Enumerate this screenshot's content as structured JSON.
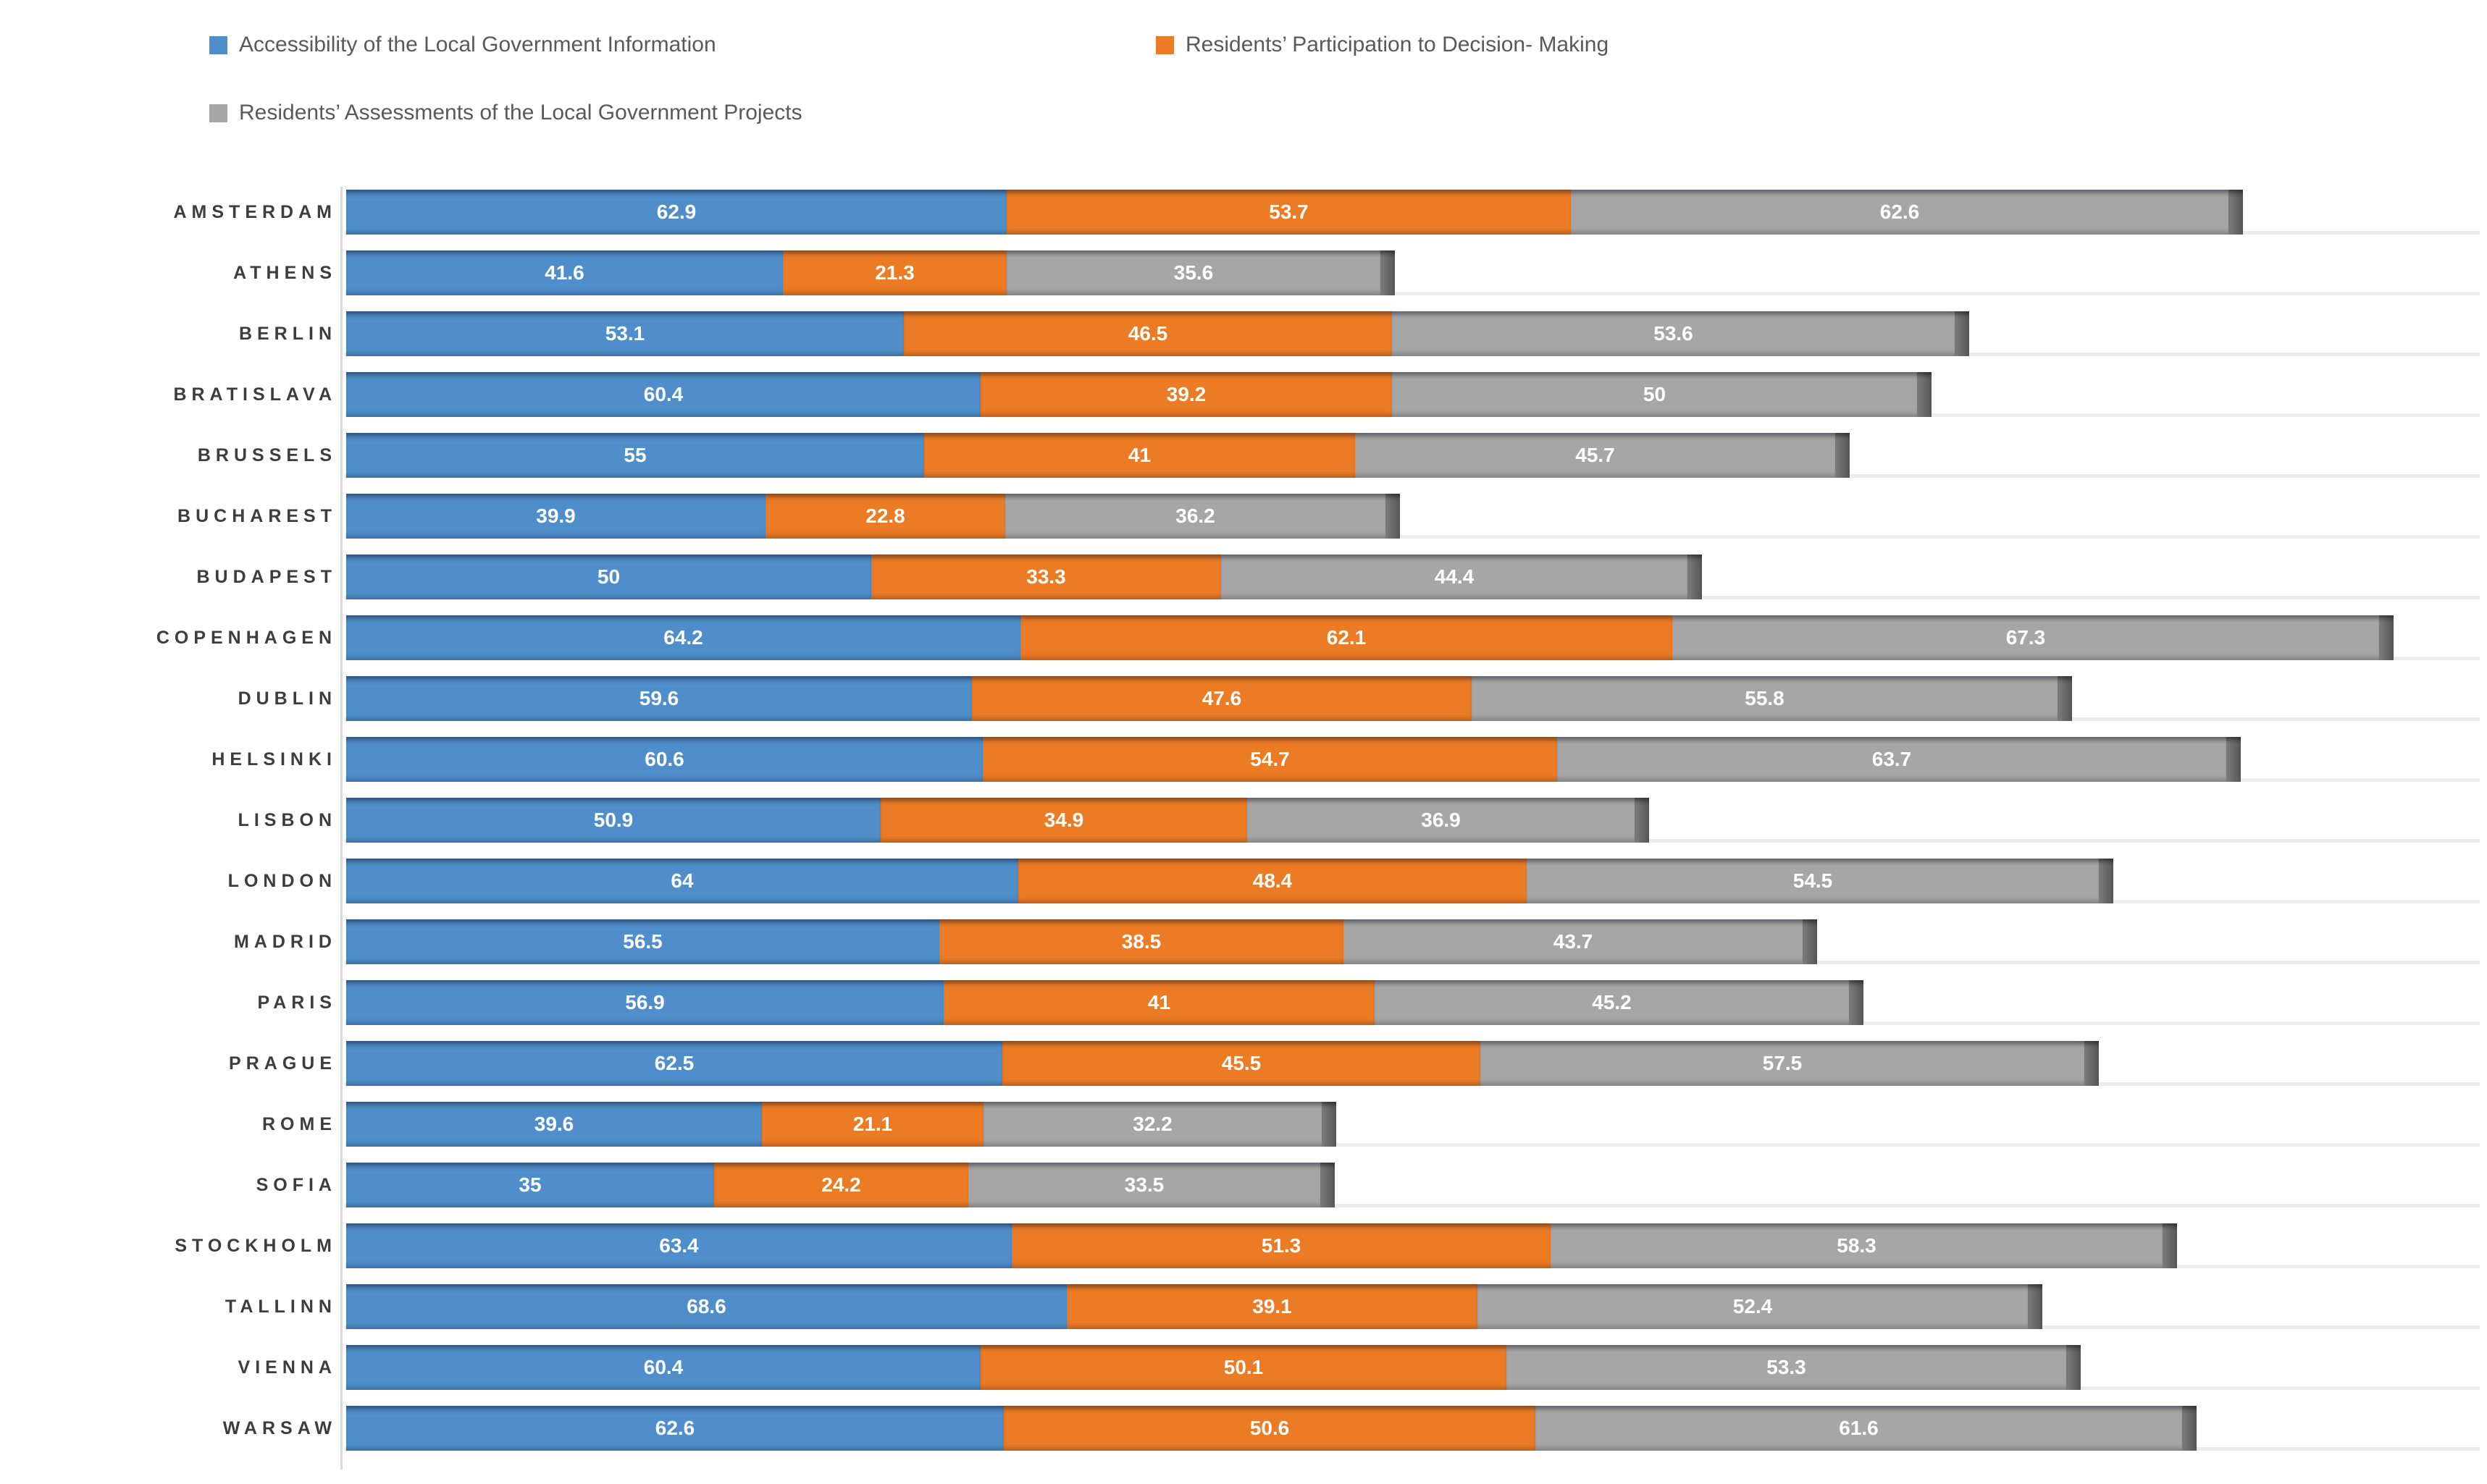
{
  "chart_data": {
    "type": "bar",
    "orientation": "horizontal-stacked-3d",
    "title": "",
    "xlabel": "",
    "ylabel": "",
    "xlim": [
      0,
      200
    ],
    "grid": "light-row-separator-lines",
    "legend_position": "top",
    "value_labels": "white bold, centered inside each segment",
    "categories": [
      "AMSTERDAM",
      "ATHENS",
      "BERLIN",
      "BRATISLAVA",
      "BRUSSELS",
      "BUCHAREST",
      "BUDAPEST",
      "COPENHAGEN",
      "DUBLIN",
      "HELSINKI",
      "LISBON",
      "LONDON",
      "MADRID",
      "PARIS",
      "PRAGUE",
      "ROME",
      "SOFIA",
      "STOCKHOLM",
      "TALLINN",
      "VIENNA",
      "WARSAW"
    ],
    "series": [
      {
        "name": "Accessibility of the Local Government Information",
        "color": "#4f8ecb",
        "values": [
          62.9,
          41.6,
          53.1,
          60.4,
          55,
          39.9,
          50,
          64.2,
          59.6,
          60.6,
          50.9,
          64,
          56.5,
          56.9,
          62.5,
          39.6,
          35,
          63.4,
          68.6,
          60.4,
          62.6
        ]
      },
      {
        "name": "Residents’ Participation to Decision- Making",
        "color": "#ec7b25",
        "values": [
          53.7,
          21.3,
          46.5,
          39.2,
          41,
          22.8,
          33.3,
          62.1,
          47.6,
          54.7,
          34.9,
          48.4,
          38.5,
          41,
          45.5,
          21.1,
          24.2,
          51.3,
          39.1,
          50.1,
          50.6
        ]
      },
      {
        "name": "Residents’ Assessments of the Local Government Projects",
        "color": "#a6a6a6",
        "values": [
          62.6,
          35.6,
          53.6,
          50,
          45.7,
          36.2,
          44.4,
          67.3,
          55.8,
          63.7,
          36.9,
          54.5,
          43.7,
          45.2,
          57.5,
          32.2,
          33.5,
          58.3,
          52.4,
          53.3,
          61.6
        ]
      }
    ],
    "bar_end_cap_color": "#5f5f5f",
    "separator_line_color": "#ececec",
    "axis_wall_color": "#d9d9d9",
    "category_label_color": "#3d3d3d",
    "legend_text_color": "#595959"
  }
}
